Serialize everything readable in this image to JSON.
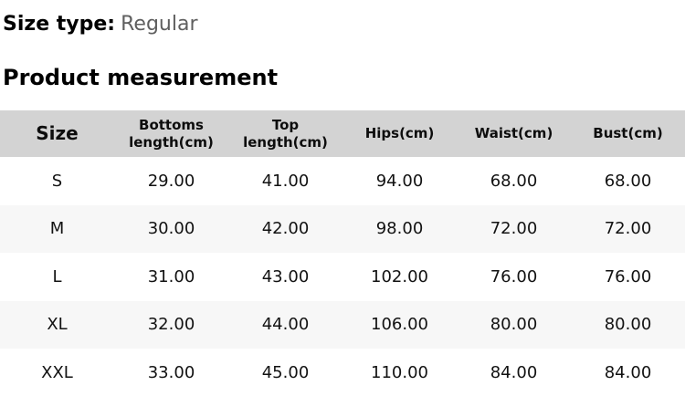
{
  "size_type": {
    "label": "Size type:",
    "value": "Regular"
  },
  "section_title": "Product measurement",
  "table": {
    "columns": [
      "Size",
      "Bottoms length(cm)",
      "Top length(cm)",
      "Hips(cm)",
      "Waist(cm)",
      "Bust(cm)"
    ],
    "rows": [
      [
        "S",
        "29.00",
        "41.00",
        "94.00",
        "68.00",
        "68.00"
      ],
      [
        "M",
        "30.00",
        "42.00",
        "98.00",
        "72.00",
        "72.00"
      ],
      [
        "L",
        "31.00",
        "43.00",
        "102.00",
        "76.00",
        "76.00"
      ],
      [
        "XL",
        "32.00",
        "44.00",
        "106.00",
        "80.00",
        "80.00"
      ],
      [
        "XXL",
        "33.00",
        "45.00",
        "110.00",
        "84.00",
        "84.00"
      ]
    ]
  },
  "colors": {
    "header_bg": "#d3d3d3",
    "stripe_bg": "#f7f7f7",
    "heading_text": "#000000",
    "muted_text": "#5f5f5f",
    "cell_text": "#121212"
  }
}
